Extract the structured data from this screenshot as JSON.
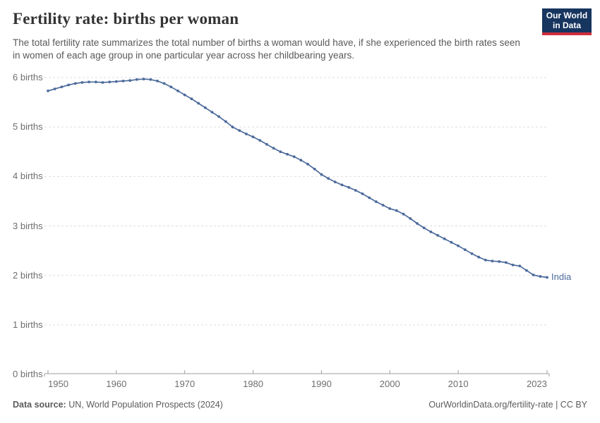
{
  "header": {
    "title": "Fertility rate: births per woman",
    "subtitle": "The total fertility rate summarizes the total number of births a woman would have, if she experienced the birth rates seen in women of each age group in one particular year across her childbearing years."
  },
  "logo": {
    "line1": "Our World",
    "line2": "in Data"
  },
  "chart_data": {
    "type": "line",
    "title": "Fertility rate: births per woman",
    "entity_label": "India",
    "x": [
      1950,
      1951,
      1952,
      1953,
      1954,
      1955,
      1956,
      1957,
      1958,
      1959,
      1960,
      1961,
      1962,
      1963,
      1964,
      1965,
      1966,
      1967,
      1968,
      1969,
      1970,
      1971,
      1972,
      1973,
      1974,
      1975,
      1976,
      1977,
      1978,
      1979,
      1980,
      1981,
      1982,
      1983,
      1984,
      1985,
      1986,
      1987,
      1988,
      1989,
      1990,
      1991,
      1992,
      1993,
      1994,
      1995,
      1996,
      1997,
      1998,
      1999,
      2000,
      2001,
      2002,
      2003,
      2004,
      2005,
      2006,
      2007,
      2008,
      2009,
      2010,
      2011,
      2012,
      2013,
      2014,
      2015,
      2016,
      2017,
      2018,
      2019,
      2020,
      2021,
      2022,
      2023
    ],
    "series": [
      {
        "name": "India",
        "values": [
          5.73,
          5.77,
          5.81,
          5.85,
          5.88,
          5.9,
          5.91,
          5.91,
          5.9,
          5.91,
          5.92,
          5.93,
          5.94,
          5.96,
          5.97,
          5.96,
          5.93,
          5.88,
          5.81,
          5.73,
          5.65,
          5.57,
          5.48,
          5.39,
          5.3,
          5.21,
          5.11,
          5.0,
          4.93,
          4.86,
          4.8,
          4.73,
          4.65,
          4.57,
          4.5,
          4.45,
          4.4,
          4.33,
          4.25,
          4.15,
          4.04,
          3.96,
          3.89,
          3.83,
          3.78,
          3.72,
          3.65,
          3.57,
          3.49,
          3.42,
          3.35,
          3.31,
          3.24,
          3.15,
          3.05,
          2.96,
          2.88,
          2.81,
          2.74,
          2.67,
          2.6,
          2.52,
          2.44,
          2.37,
          2.31,
          2.29,
          2.28,
          2.26,
          2.21,
          2.19,
          2.1,
          2.01,
          1.98,
          1.96
        ]
      }
    ],
    "xlim": [
      1950,
      2023
    ],
    "ylim": [
      0,
      6
    ],
    "xticks": [
      1950,
      1960,
      1970,
      1980,
      1990,
      2000,
      2010,
      2023
    ],
    "xtick_labels": [
      "1950",
      "1960",
      "1970",
      "1980",
      "1990",
      "2000",
      "2010",
      "2023"
    ],
    "yticks": [
      0,
      1,
      2,
      3,
      4,
      5,
      6
    ],
    "ytick_labels": [
      "0 births",
      "1 births",
      "2 births",
      "3 births",
      "4 births",
      "5 births",
      "6 births"
    ],
    "xlabel": "",
    "ylabel": "",
    "grid": "horizontal dashed",
    "legend_position": "end-of-line label",
    "line_color": "#4C6A9C",
    "gridline_color": "#dedede",
    "axis_color": "#9e9e9e",
    "tick_text_color": "#6e6e6e"
  },
  "footer": {
    "source_label": "Data source:",
    "source_value": "UN, World Population Prospects (2024)",
    "attribution": "OurWorldinData.org/fertility-rate | CC BY"
  },
  "colors": {
    "logo_bg": "#16355f",
    "logo_stripe": "#cf2e3c",
    "title": "#333333",
    "subtitle": "#595959"
  }
}
